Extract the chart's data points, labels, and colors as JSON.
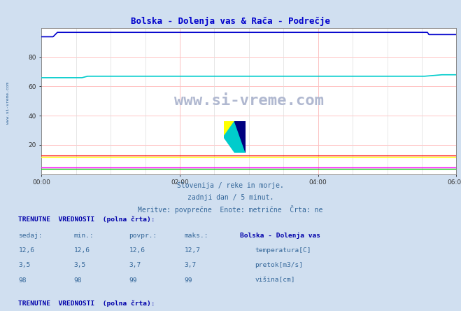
{
  "title": "Bolska - Dolenja vas & Rača - Podrečje",
  "title_color": "#0000cc",
  "bg_color": "#d0dff0",
  "plot_bg_color": "#ffffff",
  "ylim": [
    0,
    100
  ],
  "yticks": [
    20,
    40,
    60,
    80
  ],
  "xlabel_times": [
    "00:00",
    "02:00",
    "04:00",
    "06:00"
  ],
  "num_points": 288,
  "subtitle1": "Slovenija / reke in morje.",
  "subtitle2": "zadnji dan / 5 minut.",
  "subtitle3": "Meritve: povprečne  Enote: metrične  Črta: ne",
  "subtitle_color": "#336699",
  "watermark": "www.si-vreme.com",
  "watermark_color": "#b0b8d0",
  "table_header_color": "#0000aa",
  "table_data_color": "#336699",
  "bolska_temp_color": "#ff0000",
  "bolska_pretok_color": "#00cc00",
  "bolska_visina_color": "#0000cc",
  "raca_temp_color": "#ffff00",
  "raca_pretok_color": "#ff00ff",
  "raca_visina_color": "#00cccc"
}
